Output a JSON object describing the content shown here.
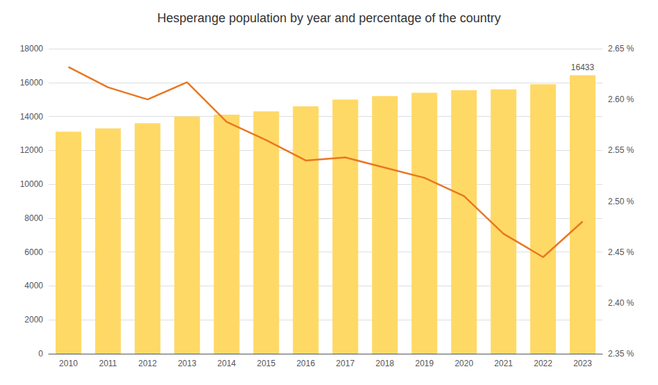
{
  "chart_data": {
    "type": "bar",
    "title": "Hesperange population by year and percentage of the country",
    "categories": [
      "2010",
      "2011",
      "2012",
      "2013",
      "2014",
      "2015",
      "2016",
      "2017",
      "2018",
      "2019",
      "2020",
      "2021",
      "2022",
      "2023"
    ],
    "series": [
      {
        "type": "bar",
        "color": "#FFD966",
        "values": [
          13100,
          13300,
          13600,
          14000,
          14100,
          14300,
          14600,
          15000,
          15200,
          15400,
          15550,
          15600,
          15900,
          16433
        ]
      },
      {
        "type": "line",
        "color": "#E87722",
        "axis": "y2",
        "values": [
          2.632,
          2.612,
          2.6,
          2.617,
          2.578,
          2.56,
          2.54,
          2.543,
          2.533,
          2.523,
          2.505,
          2.468,
          2.445,
          2.48
        ]
      }
    ],
    "ylim": [
      0,
      18000
    ],
    "yticks": [
      0,
      2000,
      4000,
      6000,
      8000,
      10000,
      12000,
      14000,
      16000,
      18000
    ],
    "y2lim": [
      2.35,
      2.65
    ],
    "y2ticks": [
      {
        "value": 2.35,
        "label": "2.35 %"
      },
      {
        "value": 2.4,
        "label": "2.40 %"
      },
      {
        "value": 2.45,
        "label": "2.45 %"
      },
      {
        "value": 2.5,
        "label": "2.50 %"
      },
      {
        "value": 2.55,
        "label": "2.55 %"
      },
      {
        "value": 2.6,
        "label": "2.60 %"
      },
      {
        "value": 2.65,
        "label": "2.65 %"
      }
    ],
    "annotations": [
      {
        "x": "2023",
        "text": "16433"
      }
    ],
    "grid": true
  }
}
